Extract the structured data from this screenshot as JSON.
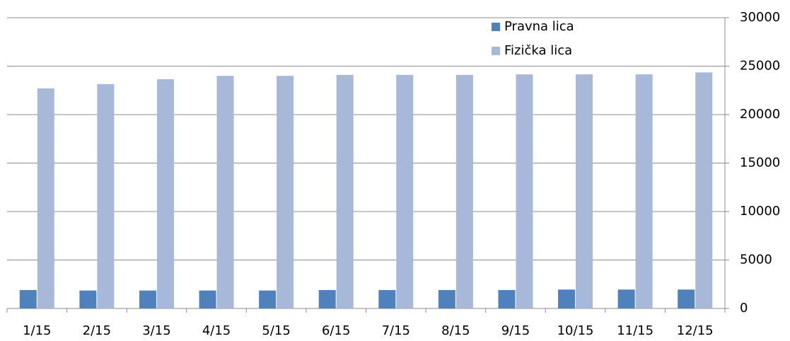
{
  "chart_data": {
    "type": "bar",
    "categories": [
      "1/15",
      "2/15",
      "3/15",
      "4/15",
      "5/15",
      "6/15",
      "7/15",
      "8/15",
      "9/15",
      "10/15",
      "11/15",
      "12/15"
    ],
    "series": [
      {
        "name": "Pravna lica",
        "color": "#4f81bd",
        "values": [
          1900,
          1850,
          1850,
          1850,
          1850,
          1900,
          1900,
          1900,
          1900,
          1950,
          1950,
          1950
        ]
      },
      {
        "name": "Fizička lica",
        "color": "#a8b8d8",
        "values": [
          22700,
          23150,
          23650,
          24000,
          24000,
          24100,
          24100,
          24100,
          24150,
          24150,
          24150,
          24350
        ]
      }
    ],
    "ylim": [
      0,
      30000
    ],
    "yticks": [
      0,
      5000,
      10000,
      15000,
      20000,
      25000,
      30000
    ],
    "grid": true,
    "y_axis_side": "right"
  }
}
